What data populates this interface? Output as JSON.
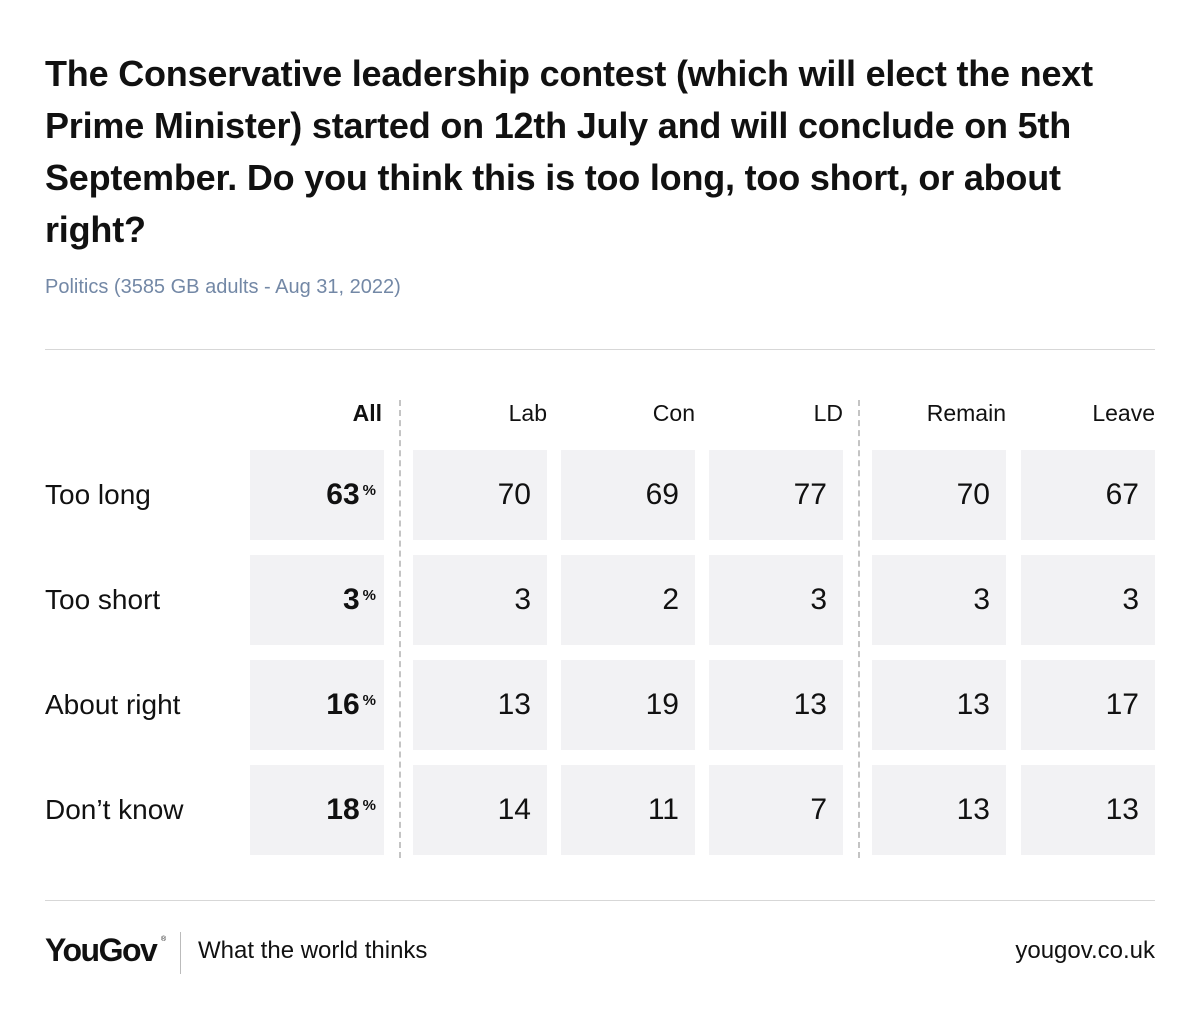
{
  "header": {
    "title": "The Conservative leadership contest (which will elect the next Prime Minister) started on 12th July and will conclude on 5th September. Do you think this is too long, too short, or about right?",
    "subtitle": "Politics (3585 GB adults - Aug 31, 2022)"
  },
  "footer": {
    "logo_text": "YouGov",
    "logo_mark": "®",
    "tagline": "What the world thinks",
    "site": "yougov.co.uk"
  },
  "chart_data": {
    "type": "table",
    "title": "The Conservative leadership contest (which will elect the next Prime Minister) started on 12th July and will conclude on 5th September. Do you think this is too long, too short, or about right?",
    "subtitle": "Politics (3585 GB adults - Aug 31, 2022)",
    "columns": [
      "All",
      "Lab",
      "Con",
      "LD",
      "Remain",
      "Leave"
    ],
    "unit": "%",
    "rows": [
      {
        "label": "Too long",
        "values": [
          63,
          70,
          69,
          77,
          70,
          67
        ]
      },
      {
        "label": "Too short",
        "values": [
          3,
          3,
          2,
          3,
          3,
          3
        ]
      },
      {
        "label": "About right",
        "values": [
          16,
          13,
          19,
          13,
          13,
          17
        ]
      },
      {
        "label": "Don’t know",
        "values": [
          18,
          14,
          11,
          7,
          13,
          13
        ]
      }
    ]
  }
}
